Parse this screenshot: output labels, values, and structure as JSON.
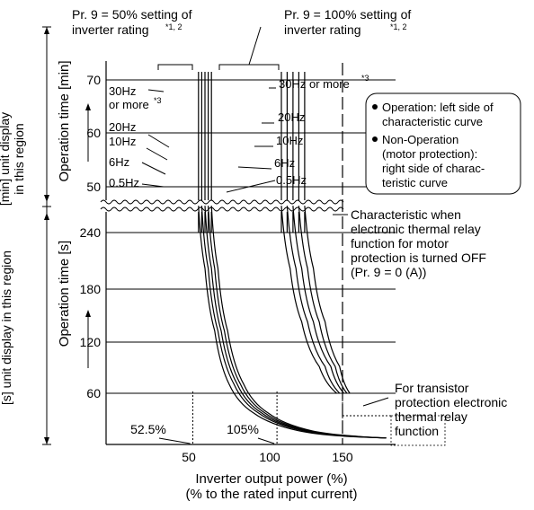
{
  "chart_data": {
    "type": "line",
    "title": "",
    "xlabel": "Inverter output power (%)",
    "xlabel2": "(% to the rated input current)",
    "x_ticks": [
      "50",
      "100",
      "150"
    ],
    "min_region": {
      "ylabel": "Operation time [min]",
      "region_label_line1": "[min] unit display",
      "region_label_line2": "in this region",
      "y_ticks": [
        "70",
        "60",
        "50"
      ],
      "ylim": [
        48,
        72
      ]
    },
    "sec_region": {
      "ylabel": "Operation time [s]",
      "region_label": "[s] unit display in this region",
      "y_ticks": [
        "240",
        "180",
        "120",
        "60"
      ],
      "ylim": [
        0,
        270
      ]
    },
    "series": [
      {
        "name": "Pr. 9 = 50% setting, 0.5Hz",
        "x": [
          56,
          60,
          66,
          75,
          90,
          120,
          150,
          180
        ],
        "y": [
          270,
          200,
          130,
          70,
          38,
          18,
          12,
          10
        ]
      },
      {
        "name": "Pr. 9 = 50% setting, 6Hz",
        "x": [
          58,
          62,
          68,
          78,
          93,
          123,
          153,
          180
        ],
        "y": [
          270,
          200,
          130,
          70,
          38,
          18,
          12,
          10
        ]
      },
      {
        "name": "Pr. 9 = 50% setting, 10Hz",
        "x": [
          60,
          64,
          70,
          80,
          95,
          125,
          155,
          180
        ],
        "y": [
          270,
          200,
          130,
          70,
          38,
          18,
          12,
          10
        ]
      },
      {
        "name": "Pr. 9 = 50% setting, 20Hz",
        "x": [
          62,
          66,
          72,
          82,
          97,
          127,
          157,
          180
        ],
        "y": [
          270,
          200,
          130,
          70,
          38,
          18,
          12,
          10
        ]
      },
      {
        "name": "Pr. 9 = 50% setting, 30Hz or more",
        "x": [
          64,
          68,
          74,
          84,
          99,
          129,
          159,
          180
        ],
        "y": [
          270,
          200,
          130,
          70,
          38,
          18,
          12,
          10
        ]
      },
      {
        "name": "Pr. 9 = 100% setting, 0.5Hz",
        "x": [
          108,
          114,
          122,
          134,
          146
        ],
        "y": [
          270,
          200,
          140,
          90,
          60
        ]
      },
      {
        "name": "Pr. 9 = 100% setting, 6Hz",
        "x": [
          112,
          118,
          126,
          138,
          148
        ],
        "y": [
          270,
          200,
          140,
          90,
          60
        ]
      },
      {
        "name": "Pr. 9 = 100% setting, 10Hz",
        "x": [
          116,
          122,
          130,
          142,
          151
        ],
        "y": [
          270,
          200,
          140,
          90,
          60
        ]
      },
      {
        "name": "Pr. 9 = 100% setting, 20Hz",
        "x": [
          120,
          126,
          134,
          145,
          153
        ],
        "y": [
          270,
          200,
          140,
          90,
          60
        ]
      },
      {
        "name": "Pr. 9 = 100% setting, 30Hz or more",
        "x": [
          124,
          130,
          138,
          148,
          155
        ],
        "y": [
          270,
          200,
          140,
          90,
          60
        ]
      }
    ],
    "reference_x": [
      52.5,
      105,
      150
    ],
    "reference_x_labels": [
      "52.5%",
      "105%"
    ],
    "annotations": {
      "pr9_50_line1": "Pr. 9 = 50% setting of",
      "pr9_50_line2": "inverter rating",
      "pr9_100_line1": "Pr. 9 = 100% setting of",
      "pr9_100_line2": "inverter rating",
      "note_12": "*1, 2",
      "note_3": "*3",
      "freq_30_line1": "30Hz",
      "freq_30_line2": "or more",
      "freq_30_100": "30Hz  or more",
      "freq_20": "20Hz",
      "freq_10": "10Hz",
      "freq_6": "6Hz",
      "freq_05": "0.5Hz",
      "legend_op1": "Operation: left side of",
      "legend_op2": "characteristic curve",
      "legend_nonop1": "Non-Operation",
      "legend_nonop2": "(motor protection):",
      "legend_nonop3": "right side of charac-",
      "legend_nonop4": "teristic curve",
      "char_line1": "Characteristic when",
      "char_line2": "electronic thermal relay",
      "char_line3": "function for motor",
      "char_line4": "protection is turned OFF",
      "char_line5": "(Pr. 9 = 0 (A))",
      "trans_line1": "For transistor",
      "trans_line2": "protection electronic",
      "trans_line3": "thermal relay",
      "trans_line4": "function"
    }
  }
}
